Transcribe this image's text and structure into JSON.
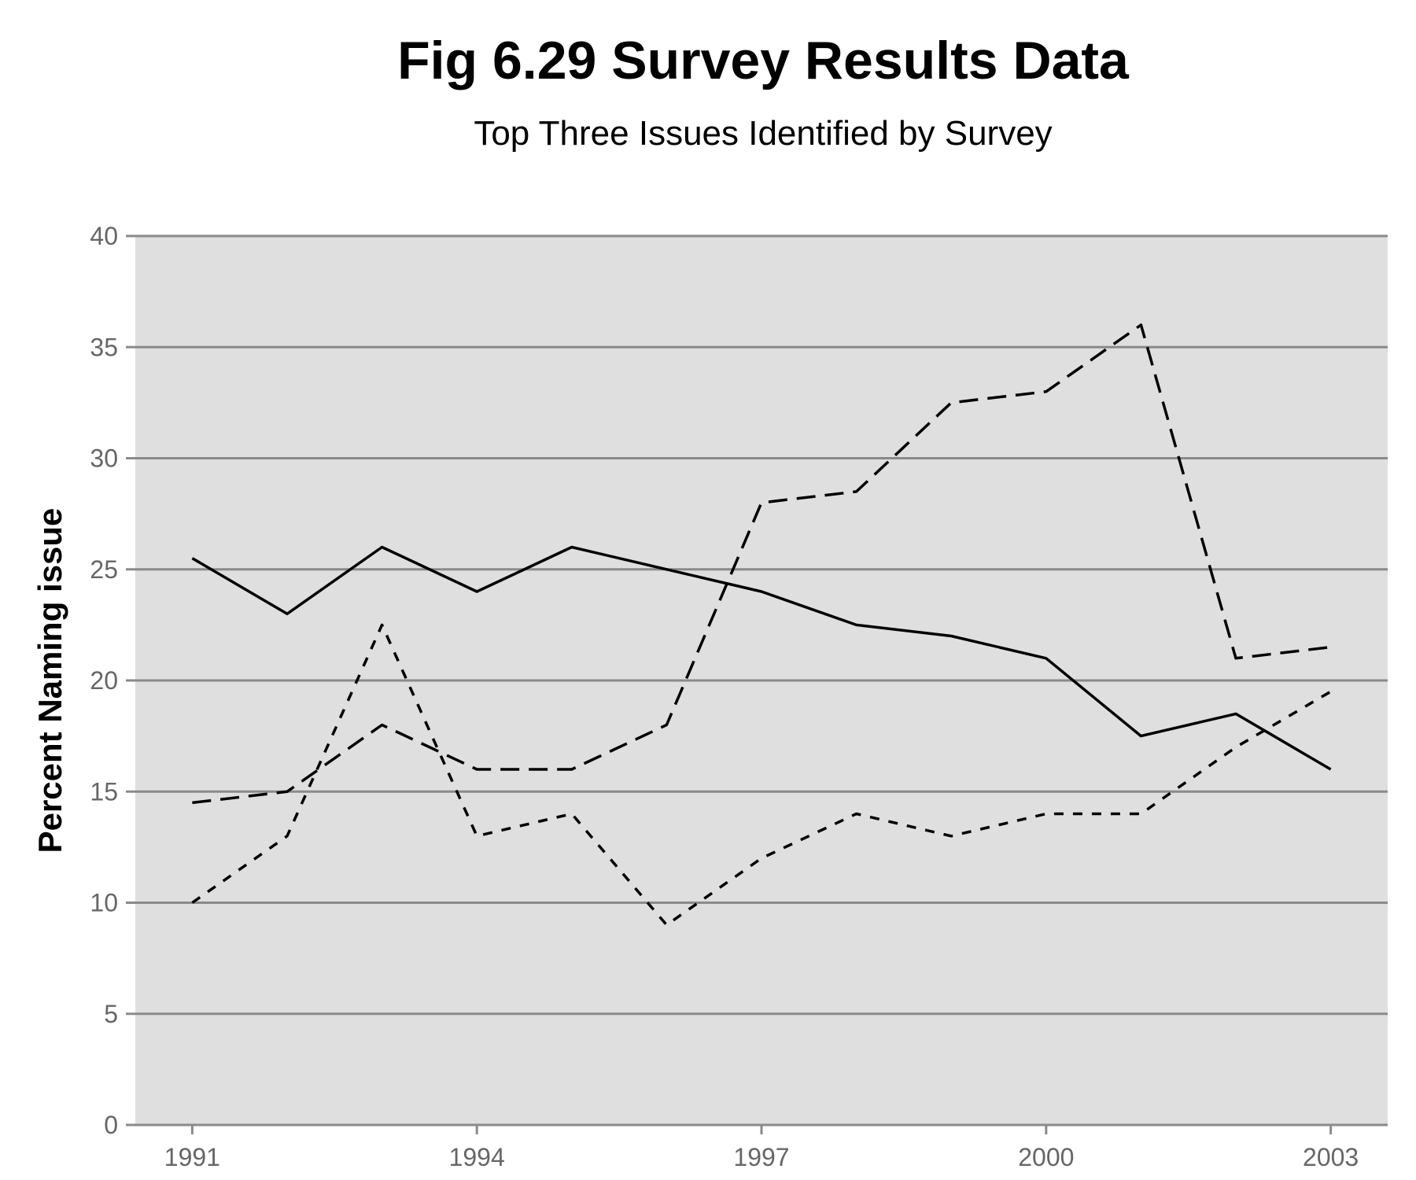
{
  "chart_data": {
    "type": "line",
    "title": "Fig 6.29 Survey Results Data",
    "subtitle": "Top Three Issues Identified by Survey",
    "xlabel": "",
    "ylabel": "Percent Naming issue",
    "x": [
      1991,
      1992,
      1993,
      1994,
      1995,
      1996,
      1997,
      1998,
      1999,
      2000,
      2001,
      2002,
      2003
    ],
    "xlim": [
      1990.4,
      2003.6
    ],
    "ylim": [
      0,
      40
    ],
    "xticks": [
      "1991",
      "1994",
      "1997",
      "2000",
      "2003"
    ],
    "yticks": [
      "0",
      "5",
      "10",
      "15",
      "20",
      "25",
      "30",
      "35",
      "40"
    ],
    "grid": "horizontal",
    "legend": "none",
    "background": "#dfdfdf",
    "series": [
      {
        "style": "solid",
        "values": [
          25.5,
          23,
          26,
          24,
          26,
          25,
          24,
          22.5,
          22,
          21,
          17.5,
          18.5,
          16
        ]
      },
      {
        "style": "long-dash",
        "values": [
          14.5,
          15,
          18,
          16,
          16,
          18,
          28,
          28.5,
          32.5,
          33,
          36,
          21,
          21.5
        ]
      },
      {
        "style": "short-dash",
        "values": [
          10,
          13,
          22.5,
          13,
          14,
          9,
          12,
          14,
          13,
          14,
          14,
          17,
          19.5
        ]
      }
    ]
  }
}
